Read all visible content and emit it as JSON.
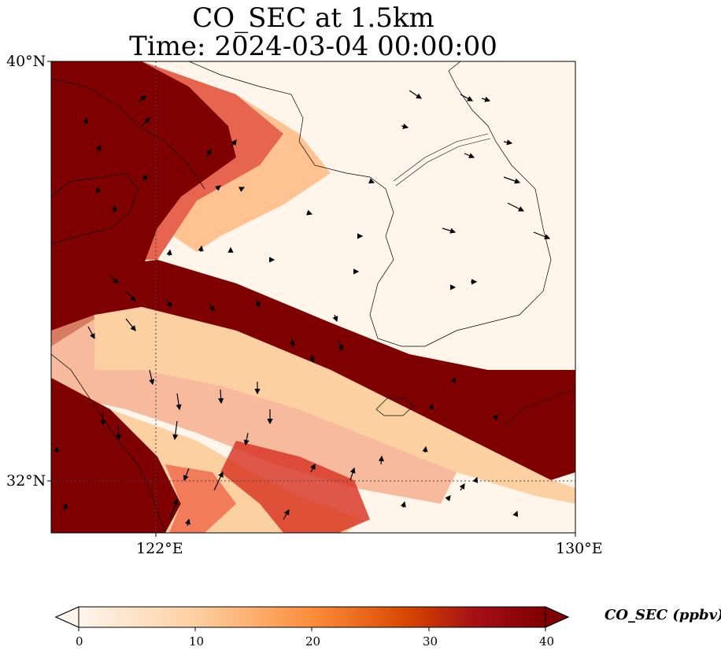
{
  "title": {
    "line1": "CO_SEC at 1.5km",
    "line2": "Time: 2024-03-04 00:00:00"
  },
  "map": {
    "extent": {
      "lon_min": 120,
      "lon_max": 130,
      "lat_min": 31,
      "lat_max": 40
    },
    "lat_ticks": [
      {
        "value": 40,
        "label": "40°N"
      },
      {
        "value": 32,
        "label": "32°N"
      }
    ],
    "lon_ticks": [
      {
        "value": 122,
        "label": "122°E"
      },
      {
        "value": 130,
        "label": "130°E"
      }
    ],
    "gridlines": "dotted"
  },
  "colorbar": {
    "label": "CO_SEC (ppbv)",
    "min": 0,
    "max": 40,
    "ticks": [
      "0",
      "10",
      "20",
      "30",
      "40"
    ],
    "colors": [
      "#fff5eb",
      "#fdd0a2",
      "#fd8d3c",
      "#d94801",
      "#a50f15",
      "#7f0000"
    ],
    "extend": "both"
  }
}
